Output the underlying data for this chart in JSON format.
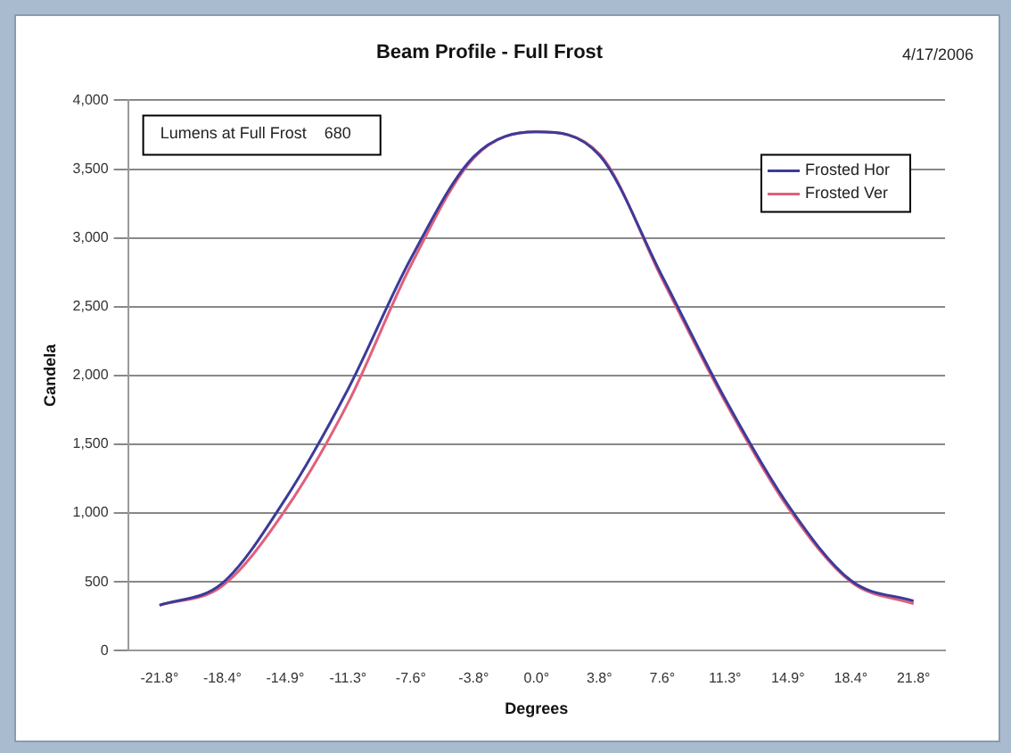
{
  "chart_data": {
    "type": "line",
    "title": "Beam Profile - Full Frost",
    "xlabel": "Degrees",
    "ylabel": "Candela",
    "annotations": [
      "4/17/2006",
      "Lumens at Full Frost    680"
    ],
    "categories": [
      "-21.8°",
      "-18.4°",
      "-14.9°",
      "-11.3°",
      "-7.6°",
      "-3.8°",
      "0.0°",
      "3.8°",
      "7.6°",
      "11.3°",
      "14.9°",
      "18.4°",
      "21.8°"
    ],
    "series": [
      {
        "name": "Frosted Hor",
        "color": "#3b3b9a",
        "values": [
          330,
          490,
          1100,
          1900,
          2850,
          3590,
          3770,
          3600,
          2720,
          1830,
          1060,
          510,
          360
        ]
      },
      {
        "name": "Frosted Ver",
        "color": "#e0607a",
        "values": [
          330,
          470,
          1020,
          1800,
          2800,
          3580,
          3770,
          3610,
          2700,
          1810,
          1040,
          500,
          340
        ]
      }
    ],
    "ylim": [
      0,
      4000
    ],
    "yticks": [
      0,
      {
        "value": 500,
        "label": "500"
      },
      {
        "value": 1000,
        "label": "1,000"
      },
      {
        "value": 1500,
        "label": "1,500"
      },
      {
        "value": 2000,
        "label": "2,000"
      },
      {
        "value": 2500,
        "label": "2,500"
      },
      {
        "value": 3000,
        "label": "3,000"
      },
      {
        "value": 3500,
        "label": "3,500"
      },
      {
        "value": 4000,
        "label": "4,000"
      }
    ],
    "grid": "y",
    "legend": "top right",
    "marker": "none",
    "line_style": "solid"
  }
}
